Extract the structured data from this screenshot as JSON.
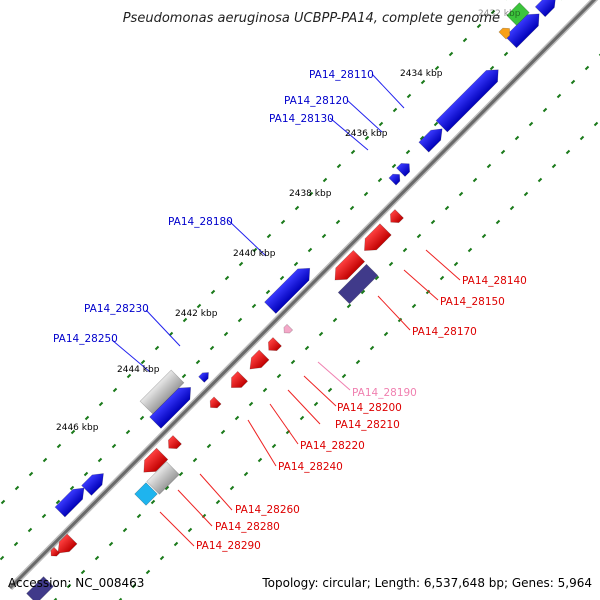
{
  "title": "Pseudomonas aeruginosa UCBPP-PA14, complete genome",
  "footer": {
    "accession": "Accession: NC_008463",
    "summary": "Topology: circular; Length: 6,537,648 bp; Genes: 5,964"
  },
  "colors": {
    "forward": "#1010dd",
    "reverse": "#ee1111",
    "backbone": "#808080",
    "dots": "#1a7a1a",
    "grey_gene": "#b8b8b8",
    "navy_gene": "#403a8a",
    "pink_gene": "#f4a8c8",
    "cyan_gene": "#1eb4ee",
    "green_gene": "#3cc43c",
    "orange_gene": "#f8a018",
    "forward_label": "#0000cc",
    "reverse_label": "#dd0000",
    "pink_label": "#f080b0"
  },
  "ticks": [
    "2432 kbp",
    "2434 kbp",
    "2436 kbp",
    "2438 kbp",
    "2440 kbp",
    "2442 kbp",
    "2444 kbp",
    "2446 kbp"
  ],
  "forward_genes": [
    "PA14_28110",
    "PA14_28120",
    "PA14_28130",
    "PA14_28180",
    "PA14_28230",
    "PA14_28250"
  ],
  "reverse_genes": [
    "PA14_28140",
    "PA14_28150",
    "PA14_28170",
    "PA14_28190",
    "PA14_28200",
    "PA14_28210",
    "PA14_28220",
    "PA14_28240",
    "PA14_28260",
    "PA14_28280",
    "PA14_28290"
  ]
}
